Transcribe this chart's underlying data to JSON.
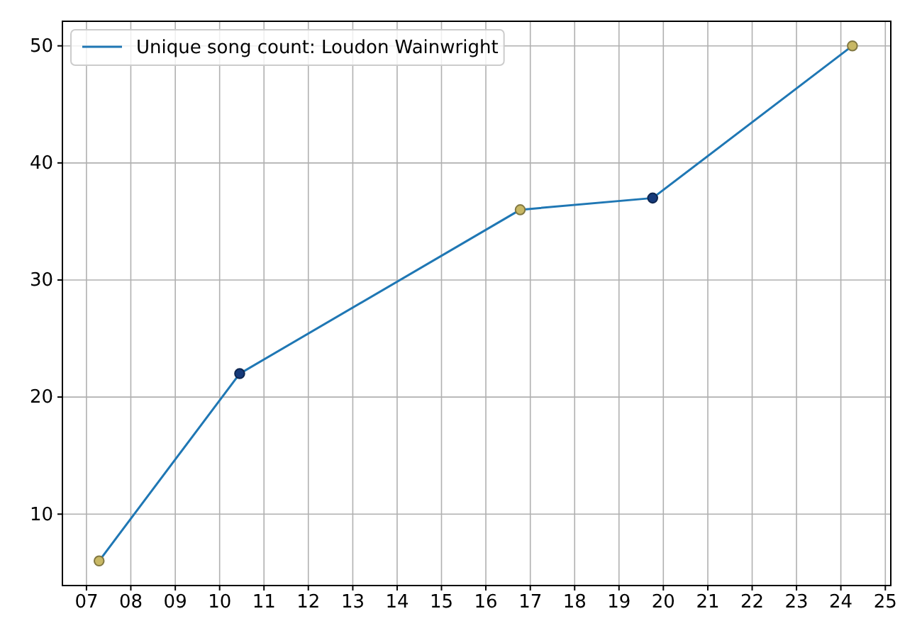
{
  "chart_data": {
    "type": "line",
    "x": [
      "2007-04-15",
      "2010-06-15",
      "2016-10-10",
      "2019-10-05",
      "2024-04-05"
    ],
    "series": [
      {
        "name": "Unique song count: Loudon Wainwright",
        "color": "#1f77b4",
        "colors": [
          "#c8b865",
          "#163a7a",
          "#c8b865",
          "#163a7a",
          "#c8b865"
        ],
        "values": [
          6,
          22,
          36,
          37,
          50
        ]
      }
    ],
    "xlim": [
      "2006-06-17",
      "2025-02-15"
    ],
    "xticks": [
      {
        "value": "2007",
        "label": "07"
      },
      {
        "value": "2008",
        "label": "08"
      },
      {
        "value": "2009",
        "label": "09"
      },
      {
        "value": "2010",
        "label": "10"
      },
      {
        "value": "2011",
        "label": "11"
      },
      {
        "value": "2012",
        "label": "12"
      },
      {
        "value": "2013",
        "label": "13"
      },
      {
        "value": "2014",
        "label": "14"
      },
      {
        "value": "2015",
        "label": "15"
      },
      {
        "value": "2016",
        "label": "16"
      },
      {
        "value": "2017",
        "label": "17"
      },
      {
        "value": "2018",
        "label": "18"
      },
      {
        "value": "2019",
        "label": "19"
      },
      {
        "value": "2020",
        "label": "20"
      },
      {
        "value": "2021",
        "label": "21"
      },
      {
        "value": "2022",
        "label": "22"
      },
      {
        "value": "2023",
        "label": "23"
      },
      {
        "value": "2024",
        "label": "24"
      },
      {
        "value": "2025",
        "label": "25"
      }
    ],
    "ylim": [
      3.9,
      52.1
    ],
    "yticks": [
      10,
      20,
      30,
      40,
      50
    ],
    "grid": true,
    "legend": "top left",
    "marker": "circle",
    "line_style": "solid"
  }
}
